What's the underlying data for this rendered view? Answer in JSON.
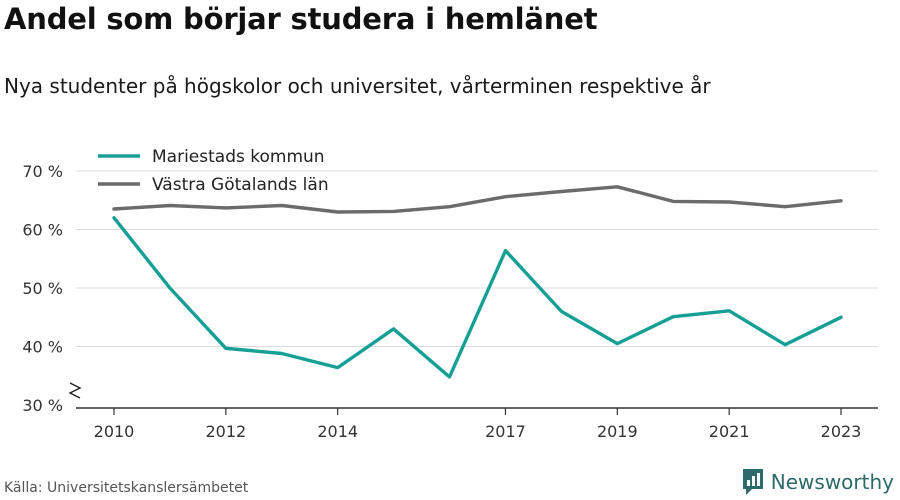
{
  "title": "Andel som börjar studera i hemlänet",
  "subtitle": "Nya studenter på högskolor och universitet, vårterminen respektive år",
  "source": "Källa: Universitetskanslersämbetet",
  "brand": "Newsworthy",
  "colors": {
    "teal": "#16a095",
    "grey": "#6b6b6b",
    "brand": "#2d6a6a"
  },
  "chart_data": {
    "type": "line",
    "x": [
      2010,
      2011,
      2012,
      2013,
      2014,
      2015,
      2016,
      2017,
      2018,
      2019,
      2020,
      2021,
      2022,
      2023
    ],
    "x_tick_labels": [
      "2010",
      "2012",
      "2014",
      "2017",
      "2019",
      "2021",
      "2023"
    ],
    "x_tick_values": [
      2010,
      2012,
      2014,
      2017,
      2019,
      2021,
      2023
    ],
    "y_tick_labels": [
      "30 %",
      "40 %",
      "50 %",
      "60 %",
      "70 %"
    ],
    "y_tick_values": [
      30,
      40,
      50,
      60,
      70
    ],
    "ylim": [
      30,
      70
    ],
    "grid": true,
    "legend_position": "top-left",
    "series": [
      {
        "name": "Mariestads kommun",
        "color": "#16a095",
        "values": [
          62,
          50,
          39.7,
          38.8,
          36.4,
          43,
          34.8,
          56.4,
          46,
          40.5,
          45.1,
          46.1,
          40.3,
          45
        ]
      },
      {
        "name": "Västra Götalands län",
        "color": "#6b6b6b",
        "values": [
          63.5,
          64.1,
          63.7,
          64.1,
          63,
          63.1,
          63.9,
          65.6,
          66.5,
          67.3,
          64.8,
          64.7,
          63.9,
          64.9
        ]
      }
    ]
  }
}
